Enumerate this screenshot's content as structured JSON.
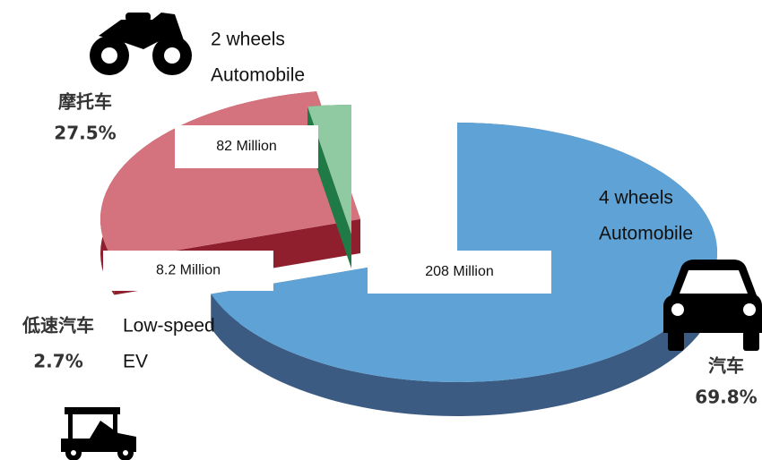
{
  "chart_data": {
    "type": "pie",
    "categories": [
      "汽车",
      "摩托车",
      "低速汽车"
    ],
    "values": [
      69.8,
      27.5,
      2.7
    ],
    "value_labels": [
      "69.8%",
      "27.5%",
      "2.7%"
    ],
    "counts": [
      208000000,
      82000000,
      8200000
    ],
    "count_labels": [
      "208 Million",
      "82 Million",
      "8.2 Million"
    ],
    "descriptions": [
      [
        "4 wheels",
        "Automobile"
      ],
      [
        "2 wheels",
        "Automobile"
      ],
      [
        "Low-speed",
        "EV"
      ]
    ],
    "colors": [
      "#5fa3d6",
      "#d4737d",
      "#8fcaa2"
    ],
    "side_colors": [
      "#3b5b82",
      "#8f1f2c",
      "#1f7a46"
    ]
  }
}
